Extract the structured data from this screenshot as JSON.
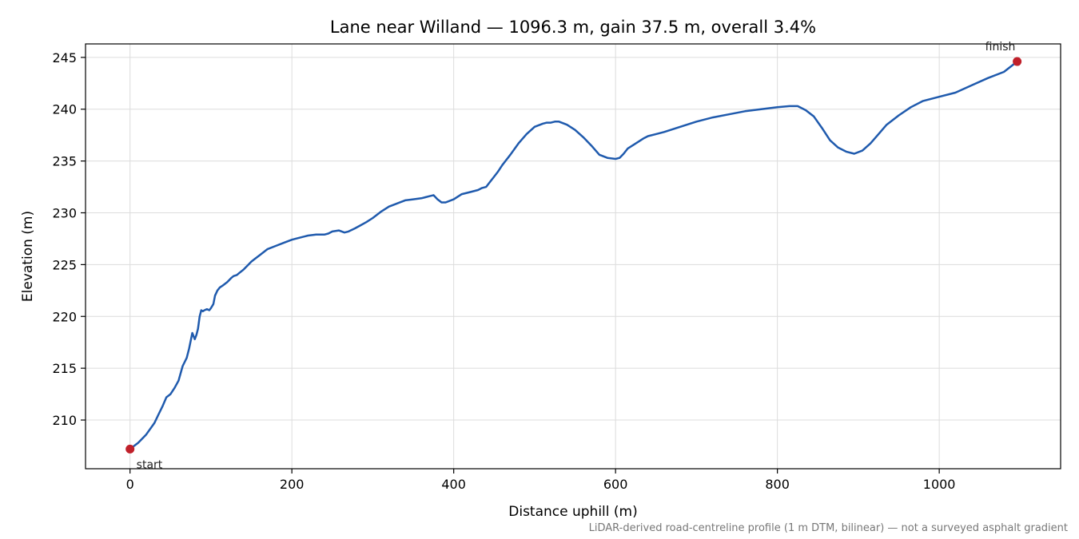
{
  "chart_data": {
    "type": "line",
    "title": "Lane near Willand — 1096.3 m, gain 37.5 m, overall 3.4%",
    "xlabel": "Distance uphill (m)",
    "ylabel": "Elevation (m)",
    "xlim": [
      -55,
      1150
    ],
    "ylim": [
      205.3,
      246.3
    ],
    "xticks": [
      0,
      200,
      400,
      600,
      800,
      1000
    ],
    "yticks": [
      210,
      215,
      220,
      225,
      230,
      235,
      240,
      245
    ],
    "grid": true,
    "footnote": "LiDAR-derived road-centreline profile (1 m DTM, bilinear) — not a surveyed asphalt gradient",
    "line_color": "#1f5aad",
    "marker_color": "#c0202a",
    "series": [
      {
        "x": [
          0,
          10,
          20,
          30,
          35,
          40,
          45,
          50,
          55,
          60,
          65,
          70,
          73,
          77,
          80,
          82,
          84,
          86,
          88,
          90,
          92,
          95,
          98,
          100,
          103,
          105,
          108,
          111,
          115,
          120,
          125,
          128,
          132,
          135,
          140,
          145,
          150,
          155,
          160,
          170,
          180,
          190,
          200,
          210,
          220,
          230,
          240,
          245,
          250,
          258,
          265,
          270,
          278,
          285,
          292,
          300,
          310,
          320,
          330,
          340,
          350,
          360,
          365,
          370,
          375,
          380,
          385,
          390,
          400,
          410,
          420,
          430,
          435,
          440,
          445,
          450,
          455,
          460,
          470,
          480,
          490,
          500,
          510,
          515,
          520,
          525,
          530,
          540,
          550,
          560,
          570,
          580,
          590,
          600,
          605,
          610,
          615,
          625,
          635,
          640,
          650,
          660,
          680,
          700,
          720,
          740,
          760,
          780,
          800,
          815,
          825,
          835,
          845,
          855,
          865,
          875,
          885,
          895,
          905,
          915,
          925,
          935,
          950,
          965,
          980,
          1000,
          1020,
          1040,
          1060,
          1080,
          1096.3
        ],
        "y": [
          207.2,
          207.8,
          208.6,
          209.7,
          210.5,
          211.3,
          212.2,
          212.5,
          213.1,
          213.8,
          215.2,
          216.0,
          216.9,
          218.4,
          217.8,
          218.2,
          218.8,
          220.0,
          220.6,
          220.5,
          220.6,
          220.7,
          220.6,
          220.8,
          221.2,
          222.0,
          222.5,
          222.8,
          223.0,
          223.3,
          223.7,
          223.9,
          224.0,
          224.2,
          224.5,
          224.9,
          225.3,
          225.6,
          225.9,
          226.5,
          226.8,
          227.1,
          227.4,
          227.6,
          227.8,
          227.9,
          227.9,
          228.0,
          228.2,
          228.3,
          228.1,
          228.2,
          228.5,
          228.8,
          229.1,
          229.5,
          230.1,
          230.6,
          230.9,
          231.2,
          231.3,
          231.4,
          231.5,
          231.6,
          231.7,
          231.3,
          231.0,
          231.0,
          231.3,
          231.8,
          232.0,
          232.2,
          232.4,
          232.5,
          233.0,
          233.5,
          234.0,
          234.6,
          235.6,
          236.7,
          237.6,
          238.3,
          238.6,
          238.7,
          238.7,
          238.8,
          238.8,
          238.5,
          238.0,
          237.3,
          236.5,
          235.6,
          235.3,
          235.2,
          235.3,
          235.7,
          236.2,
          236.7,
          237.2,
          237.4,
          237.6,
          237.8,
          238.3,
          238.8,
          239.2,
          239.5,
          239.8,
          240.0,
          240.2,
          240.3,
          240.3,
          239.9,
          239.3,
          238.2,
          237.0,
          236.3,
          235.9,
          235.7,
          236.0,
          236.7,
          237.6,
          238.5,
          239.4,
          240.2,
          240.8,
          241.2,
          241.6,
          242.3,
          243.0,
          243.6,
          244.6
        ]
      }
    ],
    "annotations": [
      {
        "text": "start",
        "x": 0,
        "y": 207.2
      },
      {
        "text": "finish",
        "x": 1096.3,
        "y": 244.6
      }
    ]
  }
}
